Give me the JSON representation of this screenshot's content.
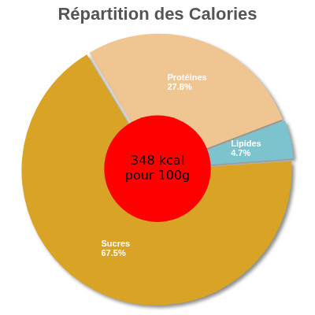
{
  "chart_data": {
    "type": "pie",
    "title": "Répartition des Calories",
    "categories": [
      "Protéines",
      "Lipides",
      "Sucres"
    ],
    "values": [
      27.8,
      4.7,
      67.5
    ],
    "value_labels": [
      "27.8%",
      "4.7%",
      "67.5%"
    ],
    "colors": [
      "#efc592",
      "#7cc3cd",
      "#d9a426"
    ],
    "data_labels": true,
    "annotations": [
      "348 kcal",
      "pour 100g"
    ]
  }
}
